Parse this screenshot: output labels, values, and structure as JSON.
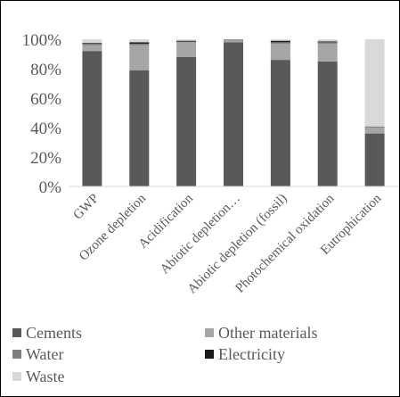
{
  "chart_data": {
    "type": "bar",
    "stacked": true,
    "categories": [
      "GWP",
      "Ozone depletion",
      "Acidification",
      "Abiotic depletion…",
      "Abiotic depletion (fossil)",
      "Photochemical oxidation",
      "Eutrophication"
    ],
    "series": [
      {
        "name": "Cements",
        "color": "#595959",
        "values": [
          92,
          79,
          88,
          98,
          86,
          85,
          36
        ]
      },
      {
        "name": "Other materials",
        "color": "#a6a6a6",
        "values": [
          4,
          17,
          10,
          1,
          11,
          12,
          4
        ]
      },
      {
        "name": "Water",
        "color": "#7f7f7f",
        "values": [
          1,
          1,
          0.5,
          0.5,
          1,
          1,
          0.5
        ]
      },
      {
        "name": "Electricity",
        "color": "#1a1a1a",
        "values": [
          0.5,
          1,
          0.5,
          0.2,
          1,
          0.5,
          0.2
        ]
      },
      {
        "name": "Waste",
        "color": "#d9d9d9",
        "values": [
          2.5,
          2,
          1,
          0.3,
          1,
          1.5,
          59.3
        ]
      }
    ],
    "yticks": [
      "0%",
      "20%",
      "40%",
      "60%",
      "80%",
      "100%"
    ],
    "ylim": [
      0,
      100
    ],
    "grid": false,
    "legend": "bottom",
    "legend_items": [
      "Cements",
      "Other materials",
      "Water",
      "Electricity",
      "Waste"
    ]
  }
}
